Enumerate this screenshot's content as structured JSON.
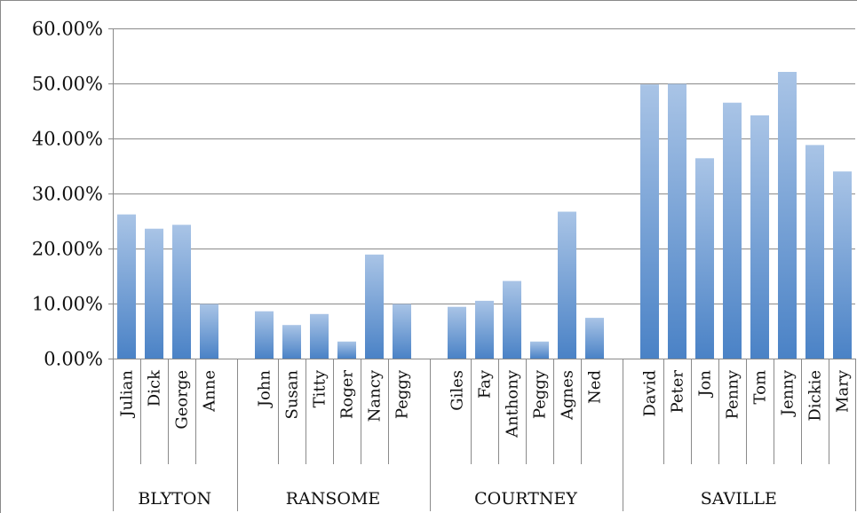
{
  "chart_data": {
    "type": "bar",
    "ylim": [
      0,
      0.6
    ],
    "yticks": [
      "0.00%",
      "10.00%",
      "20.00%",
      "30.00%",
      "40.00%",
      "50.00%",
      "60.00%"
    ],
    "grid": true,
    "legend": "none",
    "bar_color_top": "#a9c4e6",
    "bar_color_bottom": "#4a82c6",
    "groups": [
      {
        "name": "BLYTON",
        "categories": [
          "Julian",
          "Dick",
          "George",
          "Anne"
        ],
        "values": [
          0.262,
          0.236,
          0.243,
          0.099
        ]
      },
      {
        "name": "RANSOME",
        "categories": [
          "John",
          "Susan",
          "Titty",
          "Roger",
          "Nancy",
          "Peggy"
        ],
        "values": [
          0.086,
          0.061,
          0.081,
          0.031,
          0.189,
          0.099
        ]
      },
      {
        "name": "COURTNEY",
        "categories": [
          "Giles",
          "Fay",
          "Anthony",
          "Peggy",
          "Agnes",
          "Ned"
        ],
        "values": [
          0.094,
          0.105,
          0.141,
          0.031,
          0.267,
          0.074
        ]
      },
      {
        "name": "SAVILLE",
        "categories": [
          "David",
          "Peter",
          "Jon",
          "Penny",
          "Tom",
          "Jenny",
          "Dickie",
          "Mary"
        ],
        "values": [
          0.498,
          0.499,
          0.364,
          0.465,
          0.442,
          0.521,
          0.388,
          0.34
        ]
      }
    ]
  }
}
